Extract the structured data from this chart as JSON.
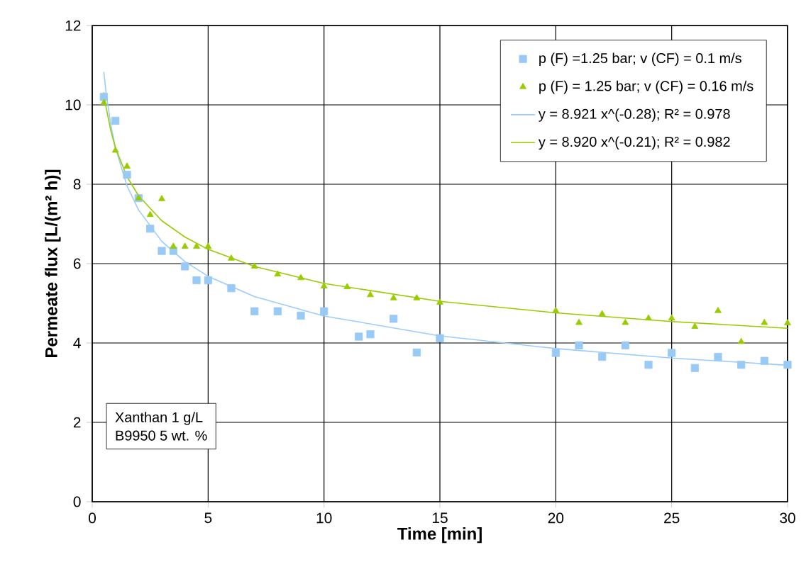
{
  "chart_data": {
    "type": "scatter",
    "xlabel": "Time   [min]",
    "ylabel": "Permeate flux   [L/(m² h)]",
    "xlim": [
      0,
      30
    ],
    "ylim": [
      0,
      12
    ],
    "xticks": [
      0,
      5,
      10,
      15,
      20,
      25,
      30
    ],
    "yticks": [
      0,
      2,
      4,
      6,
      8,
      10,
      12
    ],
    "grid": true,
    "legend": "top right",
    "annotations": [
      "Xanthan 1 g/L",
      "B9950 5 wt. %"
    ],
    "series": [
      {
        "name": "p (F) =1.25 bar; v (CF) = 0.1 m/s",
        "marker": "square",
        "color": "#99c9f5",
        "x": [
          0.5,
          1,
          1.5,
          2,
          2.5,
          3,
          3.5,
          4,
          4.5,
          5,
          6,
          7,
          8,
          9,
          10,
          11.5,
          12,
          13,
          14,
          15,
          20,
          21,
          22,
          23,
          24,
          25,
          26,
          27,
          28,
          29,
          30
        ],
        "values": [
          10.2,
          9.6,
          8.24,
          7.65,
          6.88,
          6.32,
          6.32,
          5.93,
          5.58,
          5.58,
          5.38,
          4.8,
          4.8,
          4.69,
          4.8,
          4.16,
          4.22,
          4.61,
          3.76,
          4.12,
          3.75,
          3.94,
          3.65,
          3.94,
          3.45,
          3.75,
          3.37,
          3.65,
          3.45,
          3.55,
          3.45
        ]
      },
      {
        "name": "p (F) = 1.25 bar; v (CF) = 0.16 m/s",
        "marker": "triangle",
        "color": "#99cc00",
        "x": [
          0.5,
          1,
          1.5,
          2,
          2.5,
          3,
          3.5,
          4,
          4.5,
          5,
          6,
          7,
          8,
          9,
          10,
          11,
          12,
          13,
          14,
          15,
          20,
          21,
          22,
          23,
          24,
          25,
          26,
          27,
          28,
          29,
          30
        ],
        "values": [
          10.05,
          8.85,
          8.45,
          7.65,
          7.23,
          7.63,
          6.43,
          6.43,
          6.43,
          6.43,
          6.13,
          5.93,
          5.73,
          5.64,
          5.43,
          5.41,
          5.21,
          5.13,
          5.13,
          5.02,
          4.81,
          4.51,
          4.73,
          4.51,
          4.62,
          4.62,
          4.41,
          4.81,
          4.03,
          4.51,
          4.5
        ]
      },
      {
        "name": "y = 8.921 x^(-0.28); R² = 0.978",
        "type": "line",
        "marker": "none",
        "line_style": "solid",
        "color": "#99ccff",
        "x": [
          0.5,
          0.6,
          0.8,
          1,
          1.5,
          2,
          3,
          4,
          5,
          7,
          10,
          15,
          20,
          25,
          30
        ],
        "values": [
          10.83,
          10.29,
          9.5,
          8.92,
          7.96,
          7.35,
          6.56,
          6.05,
          5.68,
          5.17,
          4.68,
          4.18,
          3.86,
          3.62,
          3.44
        ]
      },
      {
        "name": "y = 8.920 x^(-0.21); R² = 0.982",
        "type": "line",
        "marker": "none",
        "line_style": "solid",
        "color": "#99cc00",
        "x": [
          0.5,
          0.6,
          0.8,
          1,
          1.5,
          2,
          3,
          4,
          5,
          7,
          10,
          15,
          20,
          25,
          30
        ],
        "values": [
          10.32,
          9.93,
          9.35,
          8.92,
          8.19,
          7.71,
          7.08,
          6.67,
          6.36,
          5.93,
          5.5,
          5.05,
          4.76,
          4.54,
          4.37
        ]
      }
    ]
  }
}
